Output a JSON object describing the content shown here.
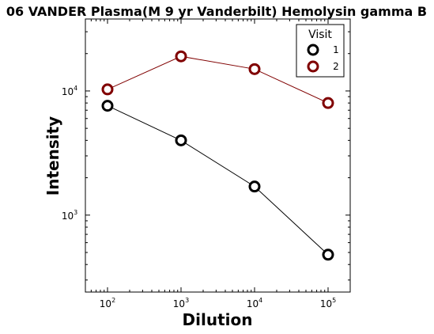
{
  "chart_data": {
    "type": "line",
    "title": "06 VANDER Plasma(M 9 yr Vanderbilt) Hemolysin gamma B",
    "xlabel": "Dilution",
    "ylabel": "Intensity",
    "xscale": "log",
    "yscale": "log",
    "xlim": [
      50,
      200000
    ],
    "ylim": [
      240,
      38000
    ],
    "x": [
      100,
      1000,
      10000,
      100000
    ],
    "x_ticks": [
      {
        "base": "10",
        "exp": "2",
        "value": 100
      },
      {
        "base": "10",
        "exp": "3",
        "value": 1000
      },
      {
        "base": "10",
        "exp": "4",
        "value": 10000
      },
      {
        "base": "10",
        "exp": "5",
        "value": 100000
      }
    ],
    "y_ticks": [
      {
        "base": "10",
        "exp": "3",
        "value": 1000
      },
      {
        "base": "10",
        "exp": "4",
        "value": 10000
      }
    ],
    "legend_title": "Visit",
    "legend_position": "top-right",
    "series": [
      {
        "name": "1",
        "color": "#000000",
        "values": [
          7600,
          4000,
          1700,
          480
        ]
      },
      {
        "name": "2",
        "color": "#800000",
        "values": [
          10300,
          19000,
          15000,
          8000
        ]
      }
    ]
  }
}
